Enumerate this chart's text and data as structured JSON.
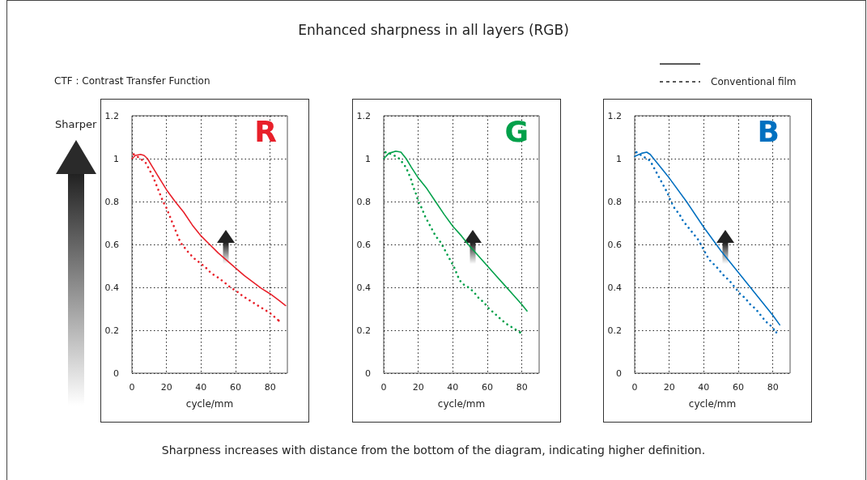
{
  "chart_data": [
    {
      "type": "line",
      "title": "R",
      "xlabel": "cycle/mm",
      "ylabel": "CTF : Contrast Transfer Function",
      "annotations": [
        "Enhanced sharpness in all layers (RGB)",
        "Sharper",
        "Sharpness increases with distance from the bottom of the diagram, indicating higher definition."
      ],
      "legend": "top right",
      "xlim": [
        0,
        90
      ],
      "xticks": [
        0,
        20,
        40,
        60,
        80
      ],
      "ylim": [
        0,
        1.2
      ],
      "yticks": [
        0,
        0.2,
        0.4,
        0.6,
        0.8,
        1,
        1.2
      ],
      "grid": true,
      "marker": "none",
      "series": [
        {
          "color": "#e8202a",
          "line_style": "solid",
          "x": [
            0,
            2,
            5,
            7,
            9,
            12,
            15,
            20,
            25,
            30,
            35,
            40,
            45,
            50,
            55,
            60,
            65,
            70,
            75,
            80,
            85,
            89
          ],
          "values": [
            1.0,
            1.015,
            1.02,
            1.015,
            1.0,
            0.96,
            0.92,
            0.855,
            0.8,
            0.75,
            0.69,
            0.64,
            0.6,
            0.56,
            0.525,
            0.49,
            0.455,
            0.425,
            0.395,
            0.37,
            0.34,
            0.315
          ]
        },
        {
          "name": "Conventional film",
          "color": "#e8202a",
          "line_style": "dotted",
          "x": [
            1,
            5,
            8,
            10,
            12,
            14,
            16,
            18,
            20,
            22,
            24,
            26,
            28,
            30,
            33,
            36,
            40,
            43,
            46,
            50,
            54,
            57,
            61,
            64,
            68,
            72,
            76,
            80,
            85
          ],
          "values": [
            1.02,
            1.0,
            0.98,
            0.95,
            0.92,
            0.88,
            0.84,
            0.8,
            0.77,
            0.73,
            0.69,
            0.65,
            0.61,
            0.59,
            0.56,
            0.535,
            0.51,
            0.49,
            0.465,
            0.445,
            0.42,
            0.4,
            0.38,
            0.36,
            0.34,
            0.32,
            0.3,
            0.28,
            0.245
          ]
        }
      ]
    },
    {
      "type": "line",
      "title": "G",
      "xlabel": "cycle/mm",
      "xlim": [
        0,
        90
      ],
      "xticks": [
        0,
        20,
        40,
        60,
        80
      ],
      "ylim": [
        0,
        1.2
      ],
      "yticks": [
        0,
        0.2,
        0.4,
        0.6,
        0.8,
        1,
        1.2
      ],
      "grid": true,
      "marker": "none",
      "series": [
        {
          "color": "#00a04a",
          "line_style": "solid",
          "x": [
            0,
            3,
            7,
            10,
            13,
            16,
            20,
            25,
            30,
            35,
            40,
            45,
            50,
            55,
            60,
            65,
            70,
            75,
            80,
            83
          ],
          "values": [
            1.0,
            1.025,
            1.035,
            1.03,
            1.0,
            0.96,
            0.91,
            0.86,
            0.8,
            0.74,
            0.685,
            0.64,
            0.59,
            0.545,
            0.5,
            0.455,
            0.41,
            0.365,
            0.32,
            0.29
          ]
        },
        {
          "color": "#00a04a",
          "line_style": "dotted",
          "x": [
            1,
            5,
            9,
            12,
            14,
            16,
            17,
            19,
            20,
            22,
            24,
            26,
            28,
            30,
            33,
            35,
            37,
            39,
            41,
            43,
            45,
            49,
            52,
            55,
            58,
            61,
            64,
            68,
            71,
            75,
            79
          ],
          "values": [
            1.03,
            1.02,
            1.0,
            0.97,
            0.94,
            0.9,
            0.87,
            0.83,
            0.8,
            0.77,
            0.73,
            0.7,
            0.67,
            0.64,
            0.61,
            0.58,
            0.55,
            0.52,
            0.49,
            0.45,
            0.42,
            0.4,
            0.38,
            0.35,
            0.33,
            0.3,
            0.28,
            0.25,
            0.23,
            0.21,
            0.19
          ]
        }
      ]
    },
    {
      "type": "line",
      "title": "B",
      "xlabel": "cycle/mm",
      "xlim": [
        0,
        90
      ],
      "xticks": [
        0,
        20,
        40,
        60,
        80
      ],
      "ylim": [
        0,
        1.2
      ],
      "yticks": [
        0,
        0.2,
        0.4,
        0.6,
        0.8,
        1,
        1.2
      ],
      "grid": true,
      "marker": "none",
      "series": [
        {
          "color": "#0070c0",
          "line_style": "solid",
          "x": [
            0,
            4,
            7,
            9,
            11,
            15,
            20,
            30,
            40,
            50,
            60,
            70,
            80,
            84
          ],
          "values": [
            1.01,
            1.025,
            1.03,
            1.02,
            1.0,
            0.96,
            0.91,
            0.8,
            0.68,
            0.57,
            0.47,
            0.37,
            0.27,
            0.225
          ]
        },
        {
          "color": "#0070c0",
          "line_style": "dotted",
          "x": [
            1,
            5,
            9,
            11,
            13,
            15,
            17,
            19,
            21,
            23,
            26,
            28,
            31,
            34,
            37,
            39,
            41,
            43,
            48,
            51,
            55,
            58,
            61,
            64,
            67,
            70,
            73,
            76,
            79,
            82
          ],
          "values": [
            1.03,
            1.01,
            0.99,
            0.96,
            0.93,
            0.9,
            0.87,
            0.84,
            0.8,
            0.77,
            0.74,
            0.71,
            0.68,
            0.65,
            0.62,
            0.59,
            0.56,
            0.53,
            0.49,
            0.46,
            0.43,
            0.4,
            0.37,
            0.35,
            0.32,
            0.3,
            0.27,
            0.24,
            0.22,
            0.19
          ]
        }
      ]
    }
  ]
}
